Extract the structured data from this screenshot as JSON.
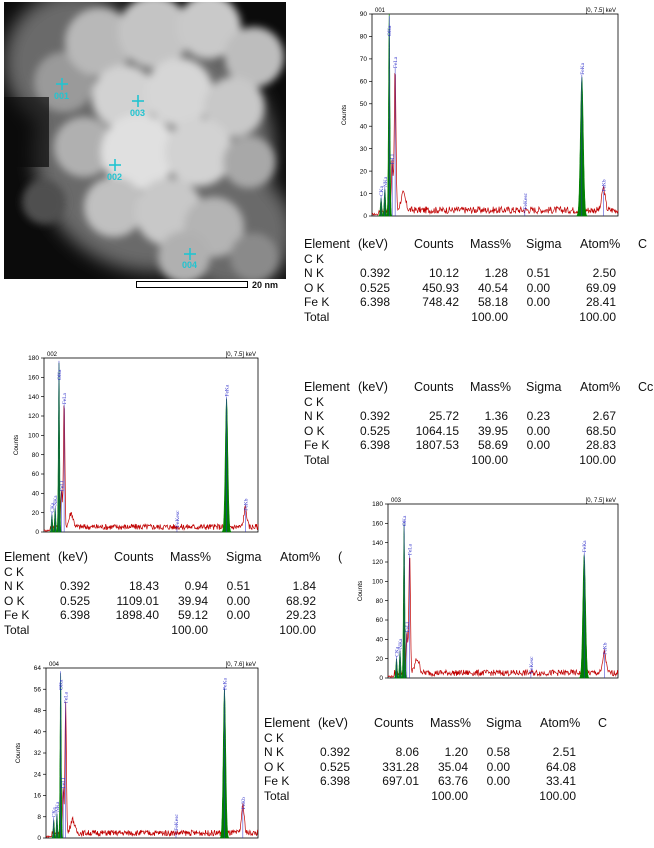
{
  "micrograph": {
    "points": [
      "001",
      "002",
      "003",
      "004"
    ],
    "scale_label": "20 nm"
  },
  "chart_data": [
    {
      "type": "line",
      "spectrum_id": "001",
      "range_label": "[0, 7.5] keV",
      "ylabel": "Counts",
      "ylim": [
        0,
        90
      ],
      "yticks": [
        0,
        10,
        20,
        30,
        40,
        50,
        60,
        70,
        80,
        90
      ],
      "xlim": [
        0,
        7.5
      ],
      "peaks": [
        {
          "label": "CKa",
          "x": 0.277,
          "y": 8
        },
        {
          "label": "NKa",
          "x": 0.392,
          "y": 12
        },
        {
          "label": "OKa",
          "x": 0.525,
          "y": 90
        },
        {
          "label": "FeLl",
          "x": 0.615,
          "y": 22
        },
        {
          "label": "FeLa",
          "x": 0.705,
          "y": 65
        },
        {
          "label": "FeKesc",
          "x": 4.66,
          "y": 2
        },
        {
          "label": "FeKa",
          "x": 6.398,
          "y": 62
        },
        {
          "label": "FeKb",
          "x": 7.057,
          "y": 10
        }
      ],
      "table": {
        "headers": [
          "Element",
          "(keV)",
          "Counts",
          "Mass%",
          "Sigma",
          "Atom%",
          "C"
        ],
        "rows": [
          [
            "C  K",
            "",
            "",
            "",
            "",
            ""
          ],
          [
            "N  K",
            "0.392",
            "10.12",
            "1.28",
            "0.51",
            "2.50"
          ],
          [
            "O  K",
            "0.525",
            "450.93",
            "40.54",
            "0.00",
            "69.09"
          ],
          [
            "Fe K",
            "6.398",
            "748.42",
            "58.18",
            "0.00",
            "28.41"
          ],
          [
            "Total",
            "",
            "",
            "100.00",
            "",
            "100.00"
          ]
        ]
      }
    },
    {
      "type": "line",
      "spectrum_id": "002",
      "range_label": "[0, 7.5] keV",
      "ylabel": "Counts",
      "ylim": [
        0,
        180
      ],
      "yticks": [
        0,
        20,
        40,
        60,
        80,
        100,
        120,
        140,
        160,
        180
      ],
      "xlim": [
        0,
        7.5
      ],
      "peaks": [
        {
          "label": "CKa",
          "x": 0.277,
          "y": 18
        },
        {
          "label": "NKa",
          "x": 0.392,
          "y": 25
        },
        {
          "label": "OKa",
          "x": 0.525,
          "y": 175
        },
        {
          "label": "FeLl",
          "x": 0.615,
          "y": 40
        },
        {
          "label": "FeLa",
          "x": 0.705,
          "y": 130
        },
        {
          "label": "FeKesc",
          "x": 4.66,
          "y": 3
        },
        {
          "label": "FeKa",
          "x": 6.398,
          "y": 138
        },
        {
          "label": "FeKb",
          "x": 7.057,
          "y": 20
        }
      ],
      "table": {
        "headers": [
          "Element",
          "(keV)",
          "Counts",
          "Mass%",
          "Sigma",
          "Atom%",
          "Cc"
        ],
        "rows": [
          [
            "C  K",
            "",
            "",
            "",
            "",
            ""
          ],
          [
            "N  K",
            "0.392",
            "25.72",
            "1.36",
            "0.23",
            "2.67"
          ],
          [
            "O  K",
            "0.525",
            "1064.15",
            "39.95",
            "0.00",
            "68.50"
          ],
          [
            "Fe K",
            "6.398",
            "1807.53",
            "58.69",
            "0.00",
            "28.83"
          ],
          [
            "Total",
            "",
            "",
            "100.00",
            "",
            "100.00"
          ]
        ]
      }
    },
    {
      "type": "line",
      "spectrum_id": "003",
      "range_label": "[0, 7.5] keV",
      "ylabel": "Counts",
      "ylim": [
        0,
        180
      ],
      "yticks": [
        0,
        20,
        40,
        60,
        80,
        100,
        120,
        140,
        160,
        180
      ],
      "xlim": [
        0,
        7.5
      ],
      "peaks": [
        {
          "label": "CKa",
          "x": 0.277,
          "y": 20
        },
        {
          "label": "NKa",
          "x": 0.392,
          "y": 28
        },
        {
          "label": "OKa",
          "x": 0.525,
          "y": 160
        },
        {
          "label": "FeLl",
          "x": 0.615,
          "y": 45
        },
        {
          "label": "FeLa",
          "x": 0.705,
          "y": 125
        },
        {
          "label": "FeKesc",
          "x": 4.66,
          "y": 3
        },
        {
          "label": "FeKa",
          "x": 6.398,
          "y": 128
        },
        {
          "label": "FeKb",
          "x": 7.057,
          "y": 22
        }
      ],
      "table": {
        "headers": [
          "Element",
          "(keV)",
          "Counts",
          "Mass%",
          "Sigma",
          "Atom%",
          "("
        ],
        "rows": [
          [
            "C  K",
            "",
            "",
            "",
            "",
            ""
          ],
          [
            "N  K",
            "0.392",
            "18.43",
            "0.94",
            "0.51",
            "1.84"
          ],
          [
            "O  K",
            "0.525",
            "1109.01",
            "39.94",
            "0.00",
            "68.92"
          ],
          [
            "Fe K",
            "6.398",
            "1898.40",
            "59.12",
            "0.00",
            "29.23"
          ],
          [
            "Total",
            "",
            "",
            "100.00",
            "",
            "100.00"
          ]
        ]
      }
    },
    {
      "type": "line",
      "spectrum_id": "004",
      "range_label": "[0, 7.6] keV",
      "ylabel": "Counts",
      "ylim": [
        0,
        64
      ],
      "yticks": [
        0,
        8,
        16,
        24,
        32,
        40,
        48,
        56,
        64
      ],
      "xlim": [
        0,
        7.6
      ],
      "peaks": [
        {
          "label": "CKa",
          "x": 0.277,
          "y": 7
        },
        {
          "label": "NKa",
          "x": 0.392,
          "y": 9
        },
        {
          "label": "OKa",
          "x": 0.525,
          "y": 62
        },
        {
          "label": "FeLl",
          "x": 0.615,
          "y": 18
        },
        {
          "label": "FeLa",
          "x": 0.705,
          "y": 50
        },
        {
          "label": "FeKesc",
          "x": 4.66,
          "y": 2
        },
        {
          "label": "FeKa",
          "x": 6.398,
          "y": 56
        },
        {
          "label": "FeKb",
          "x": 7.057,
          "y": 10
        }
      ],
      "table": {
        "headers": [
          "Element",
          "(keV)",
          "Counts",
          "Mass%",
          "Sigma",
          "Atom%",
          "C"
        ],
        "rows": [
          [
            "C  K",
            "",
            "",
            "",
            "",
            ""
          ],
          [
            "N  K",
            "0.392",
            "8.06",
            "1.20",
            "0.58",
            "2.51"
          ],
          [
            "O  K",
            "0.525",
            "331.28",
            "35.04",
            "0.00",
            "64.08"
          ],
          [
            "Fe K",
            "6.398",
            "697.01",
            "63.76",
            "0.00",
            "33.41"
          ],
          [
            "Total",
            "",
            "",
            "100.00",
            "",
            "100.00"
          ]
        ]
      }
    }
  ],
  "colors": {
    "peak_fill": "#008000",
    "trace": "#c00000",
    "label": "#2a2ac8",
    "marker": "#22c4d0"
  }
}
